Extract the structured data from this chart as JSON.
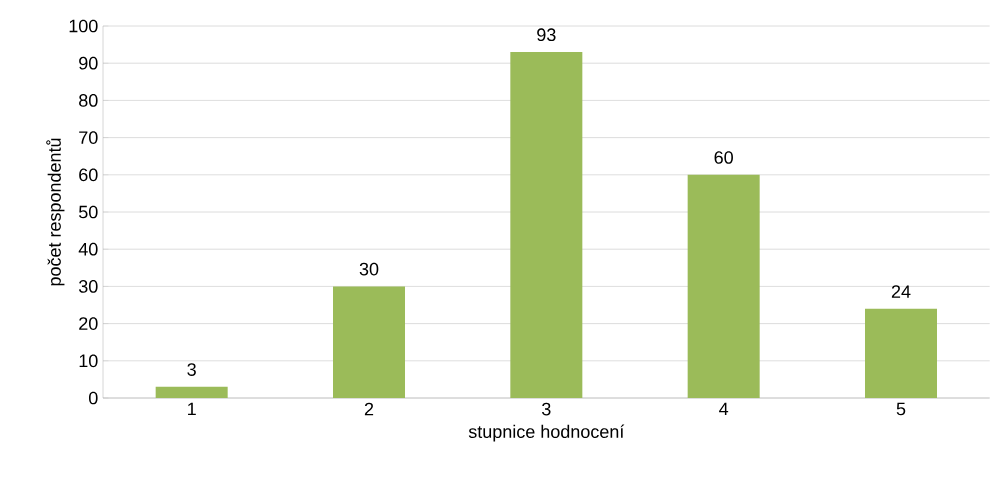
{
  "chart_data": {
    "type": "bar",
    "xlabel": "stupnice hodnocení",
    "ylabel": "počet respondentů",
    "categories": [
      "1",
      "2",
      "3",
      "4",
      "5"
    ],
    "values": [
      3,
      30,
      93,
      60,
      24
    ],
    "color": "#9bbb59",
    "ylim": [
      0,
      100
    ],
    "yticks": [
      0,
      10,
      20,
      30,
      40,
      50,
      60,
      70,
      80,
      90,
      100
    ],
    "grid": "y",
    "data_labels": true
  }
}
